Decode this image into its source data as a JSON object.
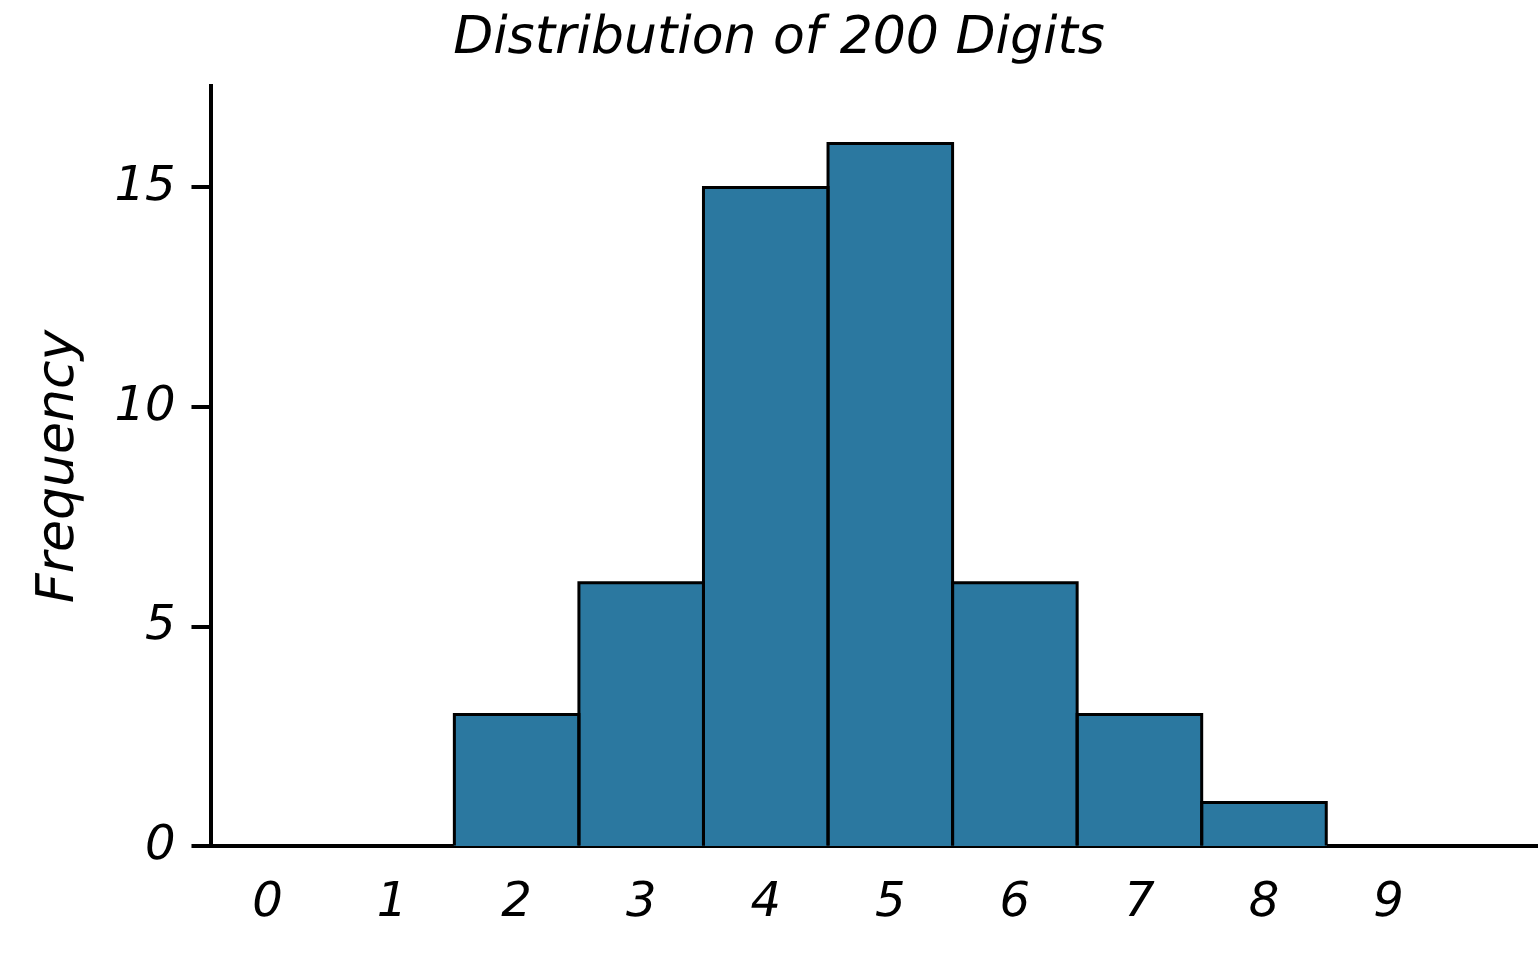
{
  "chart_data": {
    "type": "histogram",
    "title": "Distribution of 200 Digits",
    "ylabel": "Frequency",
    "bins": [
      1.5,
      2.5,
      3.5,
      4.5,
      5.5,
      6.5,
      7.5,
      8.5
    ],
    "values": [
      3,
      6,
      15,
      16,
      6,
      3,
      1
    ],
    "color": "#2b78a0",
    "xlim": [
      -0.45,
      10.2
    ],
    "xticks": [
      0,
      1,
      2,
      3,
      4,
      5,
      6,
      7,
      8,
      9
    ],
    "ylim": [
      0,
      17.3
    ],
    "yticks": [
      0,
      5,
      10,
      15
    ],
    "grid": false,
    "legend": false
  }
}
